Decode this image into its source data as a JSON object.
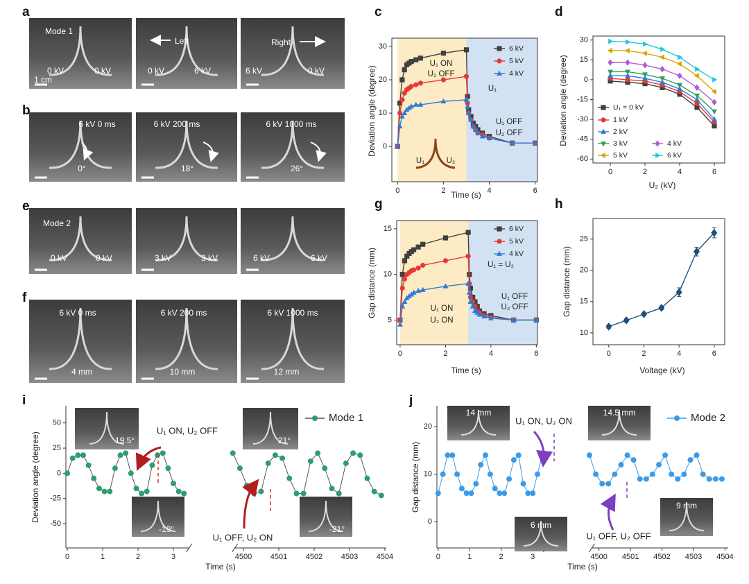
{
  "photo_panels": [
    {
      "label": "a",
      "photos": [
        [
          "Mode 1",
          "0 kV",
          "0 kV",
          "1 cm"
        ],
        [
          "Left",
          "0 kV",
          "6 kV"
        ],
        [
          "Right",
          "6 kV",
          "0 kV"
        ]
      ]
    },
    {
      "label": "b",
      "photos": [
        [
          "6 kV 0 ms",
          "0°"
        ],
        [
          "6 kV 200 ms",
          "18°"
        ],
        [
          "6 kV 1000 ms",
          "26°"
        ]
      ]
    },
    {
      "label": "e",
      "photos": [
        [
          "Mode 2",
          "0 kV",
          "0 kV"
        ],
        [
          "3 kV",
          "3 kV"
        ],
        [
          "6 kV",
          "6 kV"
        ]
      ]
    },
    {
      "label": "f",
      "photos": [
        [
          "6 kV  0 ms",
          "4 mm"
        ],
        [
          "6 kV 200 ms",
          "10 mm"
        ],
        [
          "6 kV 1000 ms",
          "12 mm"
        ]
      ]
    }
  ],
  "chart_data": [
    {
      "type": "line",
      "panel_label": "c",
      "xlabel": "Time (s)",
      "ylabel": "Deviation angle (degree)",
      "xlim": [
        -0.25,
        6.1
      ],
      "ylim": [
        -10.6,
        32.5
      ],
      "xticks": [
        0,
        2,
        4,
        6
      ],
      "yticks": [
        0,
        10,
        20,
        30
      ],
      "regions": [
        {
          "x": [
            0,
            3
          ],
          "color": "#fcebc4"
        },
        {
          "x": [
            3,
            6.1
          ],
          "color": "#d3e2f2"
        }
      ],
      "x": [
        0,
        0.1,
        0.2,
        0.3,
        0.4,
        0.5,
        0.6,
        0.8,
        1,
        2,
        3,
        3.05,
        3.1,
        3.2,
        3.3,
        3.4,
        3.5,
        3.7,
        4,
        5,
        6
      ],
      "series": [
        {
          "name": "6 kV",
          "color": "#404040",
          "marker": "square",
          "values": [
            0,
            13,
            20,
            23,
            24.5,
            25,
            25.5,
            26,
            26.5,
            28,
            29,
            15,
            11,
            9,
            7,
            6,
            5,
            4,
            3,
            1,
            1
          ]
        },
        {
          "name": "5 kV",
          "color": "#e53935",
          "marker": "circle",
          "values": [
            0,
            10,
            14,
            16,
            17,
            17.5,
            18,
            18.5,
            19,
            20,
            21,
            13,
            10,
            8,
            6,
            5,
            4,
            3.5,
            2.5,
            1,
            1
          ]
        },
        {
          "name": "4 kV",
          "color": "#2e7bd6",
          "marker": "triangle-up",
          "values": [
            0,
            6,
            9,
            10,
            11,
            11.5,
            12,
            12.5,
            12.5,
            13.5,
            14,
            12,
            10,
            8,
            6,
            5,
            4,
            3,
            2.5,
            1,
            1
          ]
        }
      ],
      "annotations": [
        "U₁ ON",
        "U₂ OFF",
        "U₁",
        "U₁ OFF",
        "U₂ OFF",
        "U₁",
        "U₂"
      ]
    },
    {
      "type": "line",
      "panel_label": "d",
      "xlabel": "U₂ (kV)",
      "ylabel": "Deviation angle (degree)",
      "xlim": [
        -1,
        6.6
      ],
      "ylim": [
        -63,
        33
      ],
      "xticks": [
        0,
        2,
        4,
        6
      ],
      "yticks": [
        30,
        15,
        0,
        -15,
        -30,
        -45,
        -60
      ],
      "x": [
        0,
        1,
        2,
        3,
        4,
        5,
        6
      ],
      "series": [
        {
          "name": "U₁ = 0 kV",
          "color": "#404040",
          "marker": "square",
          "values": [
            -1,
            -2,
            -3,
            -6,
            -11,
            -21,
            -35
          ]
        },
        {
          "name": "1 kV",
          "color": "#e53935",
          "marker": "circle",
          "values": [
            1,
            0,
            -1,
            -4,
            -9,
            -18,
            -32
          ]
        },
        {
          "name": "2 kV",
          "color": "#2e7bd6",
          "marker": "triangle-up",
          "values": [
            3,
            3,
            1,
            -2,
            -7,
            -15,
            -30
          ]
        },
        {
          "name": "3 kV",
          "color": "#2e9e5a",
          "marker": "triangle-down",
          "values": [
            6,
            6,
            4,
            1,
            -4,
            -12,
            -24
          ]
        },
        {
          "name": "4 kV",
          "color": "#b15ad8",
          "marker": "diamond",
          "values": [
            13,
            13,
            11,
            8,
            3,
            -6,
            -17
          ]
        },
        {
          "name": "5 kV",
          "color": "#d8a500",
          "marker": "triangle-left",
          "values": [
            22,
            22,
            20,
            17,
            12,
            3,
            -9
          ]
        },
        {
          "name": "6 kV",
          "color": "#25c6d6",
          "marker": "triangle-right",
          "values": [
            29,
            28.5,
            27,
            23,
            17,
            8,
            0
          ]
        }
      ]
    },
    {
      "type": "line",
      "panel_label": "g",
      "xlabel": "Time (s)",
      "ylabel": "Gap distance (mm)",
      "xlim": [
        -0.15,
        6.05
      ],
      "ylim": [
        2.3,
        15.9
      ],
      "xticks": [
        0,
        2,
        4,
        6
      ],
      "yticks": [
        5,
        10,
        15
      ],
      "regions": [
        {
          "x": [
            0,
            3
          ],
          "color": "#fcebc4"
        },
        {
          "x": [
            3,
            6.05
          ],
          "color": "#d3e2f2"
        }
      ],
      "x": [
        0,
        0.1,
        0.2,
        0.3,
        0.4,
        0.5,
        0.6,
        0.8,
        1,
        2,
        3,
        3.05,
        3.1,
        3.2,
        3.3,
        3.4,
        3.5,
        3.7,
        4,
        5,
        6
      ],
      "series": [
        {
          "name": "6 kV",
          "color": "#404040",
          "marker": "square",
          "values": [
            5,
            10,
            11.5,
            12,
            12.3,
            12.5,
            12.7,
            13,
            13.3,
            14,
            14.6,
            10,
            8.5,
            7.5,
            7,
            6.5,
            6,
            5.7,
            5.5,
            5,
            5
          ]
        },
        {
          "name": "5 kV",
          "color": "#e53935",
          "marker": "circle",
          "values": [
            5,
            8.5,
            9.5,
            10,
            10.2,
            10.4,
            10.5,
            10.7,
            11,
            11.5,
            12,
            9,
            7.5,
            7,
            6.5,
            6,
            5.8,
            5.5,
            5.3,
            5,
            5
          ]
        },
        {
          "name": "4 kV",
          "color": "#2e7bd6",
          "marker": "triangle-up",
          "values": [
            4.5,
            6.5,
            7,
            7.4,
            7.6,
            7.8,
            8,
            8.2,
            8.3,
            8.7,
            9,
            8,
            7,
            6.5,
            6,
            5.8,
            5.6,
            5.4,
            5.2,
            5,
            5
          ]
        }
      ],
      "annotations": [
        "U₁ = U₂",
        "U₁ ON",
        "U₂ ON",
        "U₁ OFF",
        "U₂ OFF"
      ]
    },
    {
      "type": "line",
      "panel_label": "h",
      "xlabel": "Voltage (kV)",
      "ylabel": "Gap distance (mm)",
      "xlim": [
        -0.9,
        6.6
      ],
      "ylim": [
        8.1,
        28.3
      ],
      "xticks": [
        0,
        2,
        4,
        6
      ],
      "yticks": [
        10,
        15,
        20,
        25
      ],
      "x": [
        0,
        1,
        2,
        3,
        4,
        5,
        6
      ],
      "series": [
        {
          "color": "#1f4e79",
          "marker": "diamond",
          "values": [
            11,
            12,
            13,
            14,
            16.5,
            23,
            26
          ],
          "errors": [
            0.3,
            0.3,
            0.3,
            0.3,
            0.7,
            0.7,
            0.8
          ]
        }
      ]
    },
    {
      "type": "line",
      "panel_label": "i",
      "xlabel": "Time (s)",
      "ylabel": "Deviation angle (degree)",
      "xlim": [
        -0.04,
        4504.04
      ],
      "x_break": [
        3.6,
        4499.6
      ],
      "ylim": [
        -74,
        67
      ],
      "xticks": [
        0,
        1,
        2,
        3,
        4500,
        4501,
        4502,
        4503,
        4504
      ],
      "yticks": [
        50,
        25,
        0,
        -25,
        -50
      ],
      "x": [
        0,
        0.15,
        0.3,
        0.45,
        0.6,
        0.75,
        0.9,
        1.05,
        1.2,
        1.35,
        1.5,
        1.65,
        1.8,
        1.95,
        2.1,
        2.25,
        2.4,
        2.55,
        2.7,
        2.85,
        3,
        3.15,
        3.3,
        4499.7,
        4499.9,
        4500.1,
        4500.3,
        4500.5,
        4500.7,
        4500.9,
        4501.1,
        4501.3,
        4501.5,
        4501.7,
        4501.9,
        4502.1,
        4502.3,
        4502.5,
        4502.7,
        4502.9,
        4503.1,
        4503.3,
        4503.5,
        4503.7,
        4503.9
      ],
      "series": [
        {
          "name": "Mode 1",
          "color": "#2e9e6e",
          "line_color": "#555555",
          "marker": "circle",
          "values": [
            0,
            15,
            18,
            18,
            8,
            -5,
            -15,
            -18,
            -18,
            5,
            18,
            20,
            0,
            -15,
            -20,
            -18,
            8,
            18,
            20,
            5,
            -10,
            -18,
            -20,
            20,
            5,
            -12,
            -20,
            -18,
            10,
            18,
            15,
            -5,
            -20,
            -20,
            12,
            20,
            5,
            -15,
            -20,
            10,
            20,
            18,
            -5,
            -18,
            -22
          ]
        }
      ],
      "annotations": [
        "U₁ ON, U₂ OFF",
        "U₁ OFF, U₂ ON"
      ],
      "insets": [
        "19.5°",
        "21°",
        "-19°",
        "-21°"
      ]
    },
    {
      "type": "line",
      "panel_label": "j",
      "xlabel": "Time (s)",
      "ylabel": "Gap distance (mm)",
      "xlim": [
        -0.04,
        4504.1
      ],
      "x_break": [
        3.6,
        4499.6
      ],
      "ylim": [
        -5.5,
        24.4
      ],
      "xticks": [
        0,
        1,
        2,
        3,
        4500,
        4501,
        4502,
        4503,
        4504
      ],
      "yticks": [
        0,
        10,
        20
      ],
      "x": [
        0,
        0.15,
        0.3,
        0.45,
        0.6,
        0.75,
        0.9,
        1.05,
        1.2,
        1.35,
        1.5,
        1.65,
        1.8,
        1.95,
        2.1,
        2.25,
        2.4,
        2.55,
        2.7,
        2.85,
        3,
        3.15,
        3.3,
        4499.7,
        4499.9,
        4500.1,
        4500.3,
        4500.5,
        4500.7,
        4500.9,
        4501.1,
        4501.3,
        4501.5,
        4501.7,
        4501.9,
        4502.1,
        4502.3,
        4502.5,
        4502.7,
        4502.9,
        4503.1,
        4503.3,
        4503.5,
        4503.7,
        4503.9
      ],
      "series": [
        {
          "name": "Mode 2",
          "color": "#3a9be8",
          "line_color": "#3a9be8",
          "marker": "circle",
          "values": [
            6,
            10,
            14,
            14,
            10,
            7,
            6,
            6,
            8,
            12,
            14,
            10,
            7,
            6,
            6,
            9,
            13,
            14,
            8,
            6,
            6,
            10,
            14,
            14,
            10,
            8,
            8,
            10,
            12,
            14,
            13,
            9,
            9,
            10,
            12,
            14,
            10,
            9,
            10,
            13,
            14,
            10,
            9,
            9,
            9
          ]
        }
      ],
      "annotations": [
        "U₁ ON, U₂ ON",
        "U₁ OFF, U₂ OFF"
      ],
      "insets": [
        "14 mm",
        "14.5 mm",
        "6 mm",
        "9 mm"
      ]
    }
  ]
}
